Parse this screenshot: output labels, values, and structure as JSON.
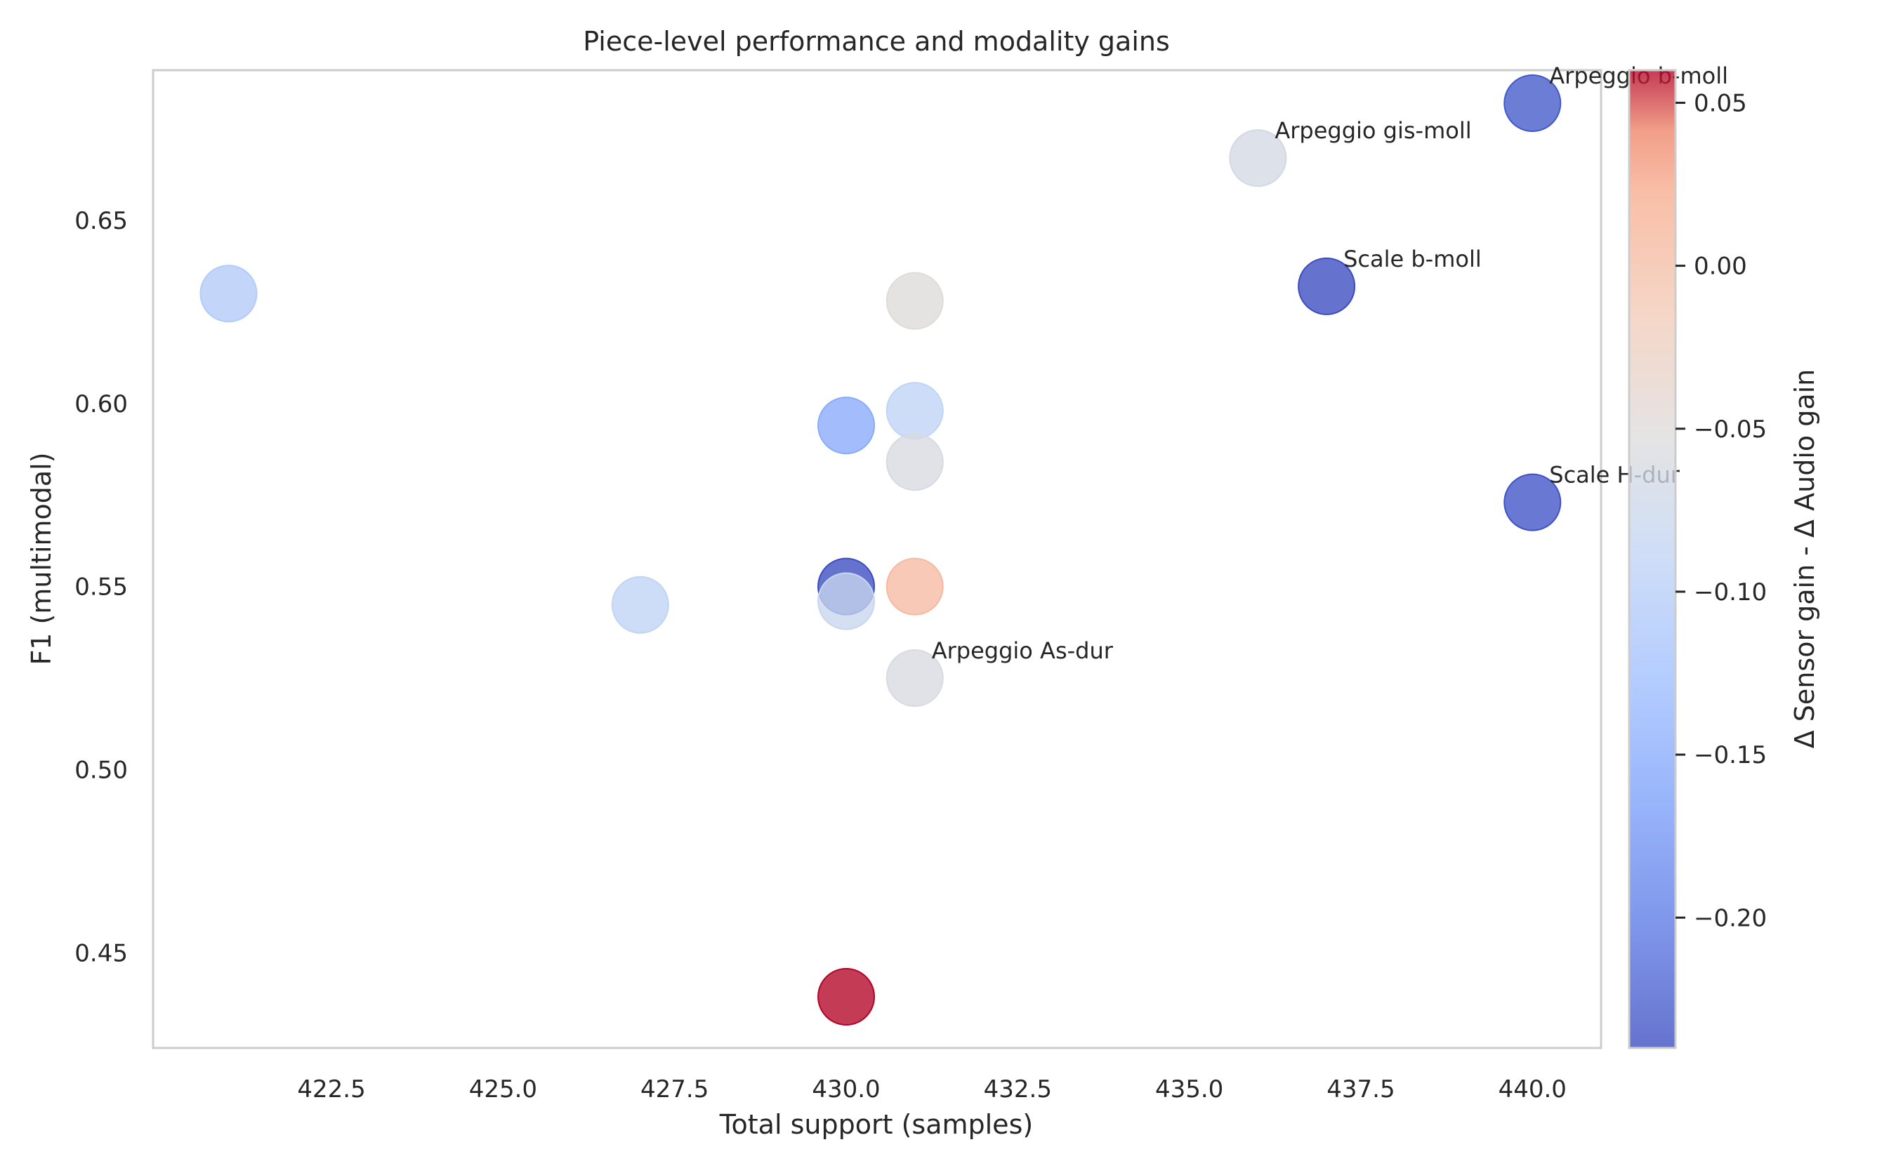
{
  "chart_data": {
    "type": "scatter",
    "title": "Piece-level performance and modality gains",
    "xlabel": "Total support (samples)",
    "ylabel": "F1 (multimodal)",
    "xlim": [
      419.9,
      441.0
    ],
    "ylim": [
      0.424,
      0.691
    ],
    "x_ticks": [
      422.5,
      425.0,
      427.5,
      430.0,
      432.5,
      435.0,
      437.5,
      440.0
    ],
    "x_tick_labels": [
      "422.5",
      "425.0",
      "427.5",
      "430.0",
      "432.5",
      "435.0",
      "437.5",
      "440.0"
    ],
    "y_ticks": [
      0.45,
      0.5,
      0.55,
      0.6,
      0.65
    ],
    "y_tick_labels": [
      "0.45",
      "0.50",
      "0.55",
      "0.60",
      "0.65"
    ],
    "grid": false,
    "colormap": "coolwarm",
    "colorbar": {
      "label": "Δ Sensor gain - Δ Audio gain",
      "range": [
        -0.24,
        0.06
      ],
      "ticks": [
        0.05,
        0.0,
        -0.05,
        -0.1,
        -0.15,
        -0.2
      ],
      "tick_labels": [
        "0.05",
        "0.00",
        "−0.05",
        "−0.10",
        "−0.15",
        "−0.20"
      ]
    },
    "points": [
      {
        "x": 421.0,
        "y": 0.63,
        "c": -0.105,
        "label": ""
      },
      {
        "x": 427.0,
        "y": 0.545,
        "c": -0.09,
        "label": ""
      },
      {
        "x": 430.0,
        "y": 0.594,
        "c": -0.15,
        "label": ""
      },
      {
        "x": 430.0,
        "y": 0.55,
        "c": -0.24,
        "label": ""
      },
      {
        "x": 430.0,
        "y": 0.546,
        "c": -0.08,
        "label": ""
      },
      {
        "x": 430.0,
        "y": 0.438,
        "c": 0.06,
        "label": ""
      },
      {
        "x": 431.0,
        "y": 0.628,
        "c": -0.05,
        "label": ""
      },
      {
        "x": 431.0,
        "y": 0.598,
        "c": -0.09,
        "label": ""
      },
      {
        "x": 431.0,
        "y": 0.584,
        "c": -0.06,
        "label": ""
      },
      {
        "x": 431.0,
        "y": 0.55,
        "c": 0.005,
        "label": ""
      },
      {
        "x": 431.0,
        "y": 0.525,
        "c": -0.06,
        "label": "Arpeggio As-dur"
      },
      {
        "x": 436.0,
        "y": 0.667,
        "c": -0.065,
        "label": "Arpeggio gis-moll"
      },
      {
        "x": 437.0,
        "y": 0.632,
        "c": -0.24,
        "label": "Scale b-moll"
      },
      {
        "x": 440.0,
        "y": 0.682,
        "c": -0.23,
        "label": "Arpeggio b-moll"
      },
      {
        "x": 440.0,
        "y": 0.573,
        "c": -0.235,
        "label": "Scale H-dur"
      }
    ]
  }
}
